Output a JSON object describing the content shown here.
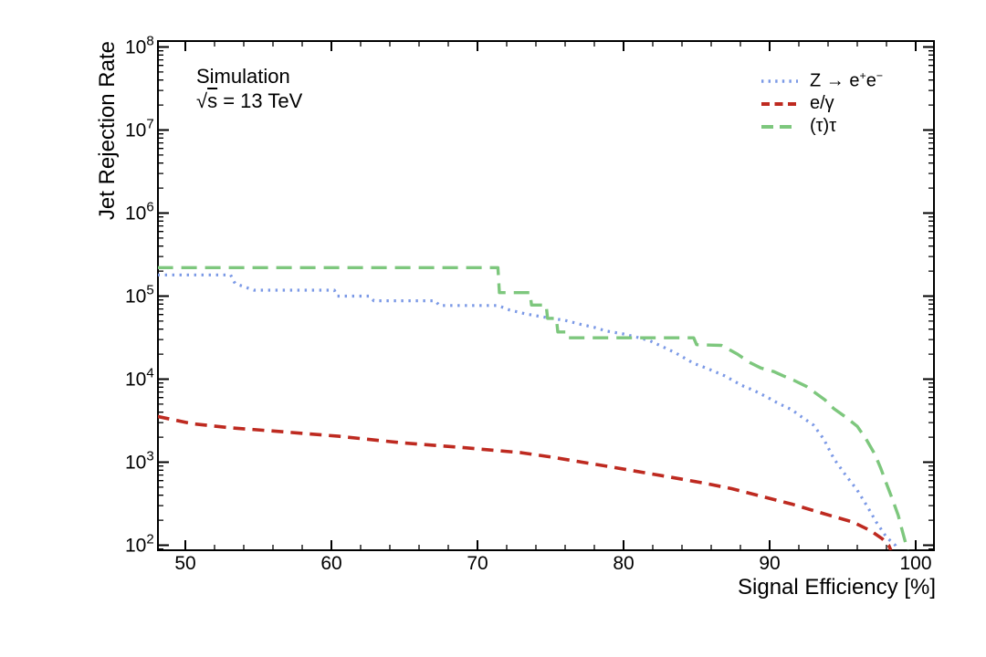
{
  "figure": {
    "annotation_line1": "Simulation",
    "annotation_sqrt": "√",
    "annotation_energy_symbol": "s",
    "annotation_energy_rest": " = 13 TeV"
  },
  "legend": {
    "position": "top-right",
    "items": [
      {
        "id": "zee",
        "label": "Z → e⁺e⁻",
        "color": "#7b99e6",
        "style": "dotted"
      },
      {
        "id": "egamma",
        "label": "e/γ",
        "color": "#be2a20",
        "style": "dashed"
      },
      {
        "id": "tautau",
        "label": "(τ)τ",
        "color": "#7dc77d",
        "style": "long-dashed"
      }
    ]
  },
  "chart_data": {
    "type": "line",
    "title": "Simulation",
    "subtitle": "√s = 13 TeV",
    "xlabel": "Signal Efficiency [%]",
    "ylabel": "Jet Rejection Rate",
    "xlim": [
      48.1,
      101.3
    ],
    "yscale": "log",
    "ylim": [
      100,
      100000000
    ],
    "x_major_ticks": [
      50,
      60,
      70,
      80,
      90,
      100
    ],
    "x_minor_tick_step": 2,
    "y_decade_exponents": [
      2,
      3,
      4,
      5,
      6,
      7,
      8
    ],
    "y_tick_base": "10",
    "grid": false,
    "legend_position": "top-right",
    "series": [
      {
        "id": "zee",
        "name": "Z → e⁺e⁻",
        "color": "#7b99e6",
        "line": "dotted",
        "points": [
          [
            48.1,
            180000
          ],
          [
            53.1,
            180000
          ],
          [
            53.4,
            142000
          ],
          [
            54.0,
            130000
          ],
          [
            54.7,
            118000
          ],
          [
            60.2,
            118000
          ],
          [
            60.4,
            100000
          ],
          [
            62.6,
            100000
          ],
          [
            62.9,
            88000
          ],
          [
            67.1,
            88000
          ],
          [
            67.4,
            77000
          ],
          [
            71.4,
            77000
          ],
          [
            72.2,
            68000
          ],
          [
            73.3,
            61000
          ],
          [
            74.5,
            56000
          ],
          [
            76.0,
            51000
          ],
          [
            77.0,
            46000
          ],
          [
            78.0,
            42000
          ],
          [
            78.8,
            38000
          ],
          [
            80.0,
            35000
          ],
          [
            80.9,
            32000
          ],
          [
            81.8,
            29000
          ],
          [
            82.8,
            24000
          ],
          [
            83.6,
            20500
          ],
          [
            84.8,
            15500
          ],
          [
            85.7,
            13500
          ],
          [
            86.9,
            11000
          ],
          [
            88.1,
            8400
          ],
          [
            89.0,
            7200
          ],
          [
            89.8,
            6100
          ],
          [
            90.6,
            5100
          ],
          [
            91.5,
            4300
          ],
          [
            92.3,
            3400
          ],
          [
            93.0,
            2800
          ],
          [
            93.7,
            1900
          ],
          [
            94.4,
            1100
          ],
          [
            95.2,
            700
          ],
          [
            96.0,
            460
          ],
          [
            96.7,
            290
          ],
          [
            97.3,
            190
          ],
          [
            98.0,
            125
          ],
          [
            98.6,
            100
          ],
          [
            98.75,
            87
          ]
        ]
      },
      {
        "id": "egamma",
        "name": "e/γ",
        "color": "#be2a20",
        "line": "dashed",
        "points": [
          [
            48.1,
            3550
          ],
          [
            50.5,
            2900
          ],
          [
            53.0,
            2600
          ],
          [
            56.3,
            2350
          ],
          [
            60.5,
            2050
          ],
          [
            64.7,
            1720
          ],
          [
            68.8,
            1510
          ],
          [
            73.0,
            1300
          ],
          [
            75.1,
            1150
          ],
          [
            79.1,
            880
          ],
          [
            83.2,
            660
          ],
          [
            85.5,
            560
          ],
          [
            87.4,
            480
          ],
          [
            89.4,
            390
          ],
          [
            91.6,
            310
          ],
          [
            93.7,
            240
          ],
          [
            95.7,
            190
          ],
          [
            96.9,
            150
          ],
          [
            97.7,
            120
          ],
          [
            98.15,
            100
          ],
          [
            98.3,
            87
          ]
        ]
      },
      {
        "id": "tautau",
        "name": "(τ)τ",
        "color": "#7dc77d",
        "line": "long-dashed",
        "points": [
          [
            48.1,
            220000
          ],
          [
            71.4,
            220000
          ],
          [
            71.5,
            110000
          ],
          [
            73.6,
            110000
          ],
          [
            73.7,
            78000
          ],
          [
            74.7,
            78000
          ],
          [
            74.8,
            54000
          ],
          [
            75.4,
            54000
          ],
          [
            75.5,
            37000
          ],
          [
            76.1,
            37000
          ],
          [
            76.2,
            31500
          ],
          [
            84.8,
            31500
          ],
          [
            85.0,
            26000
          ],
          [
            86.7,
            25500
          ],
          [
            87.8,
            20000
          ],
          [
            88.6,
            16000
          ],
          [
            89.4,
            13600
          ],
          [
            90.3,
            12300
          ],
          [
            90.9,
            11000
          ],
          [
            91.7,
            9600
          ],
          [
            92.5,
            8200
          ],
          [
            93.1,
            6900
          ],
          [
            93.8,
            5600
          ],
          [
            94.4,
            4400
          ],
          [
            95.2,
            3500
          ],
          [
            96.0,
            2700
          ],
          [
            96.6,
            1900
          ],
          [
            97.2,
            1250
          ],
          [
            97.6,
            850
          ],
          [
            98.0,
            550
          ],
          [
            98.4,
            360
          ],
          [
            98.8,
            230
          ],
          [
            99.1,
            145
          ],
          [
            99.35,
            100
          ],
          [
            99.45,
            87
          ]
        ]
      }
    ]
  }
}
